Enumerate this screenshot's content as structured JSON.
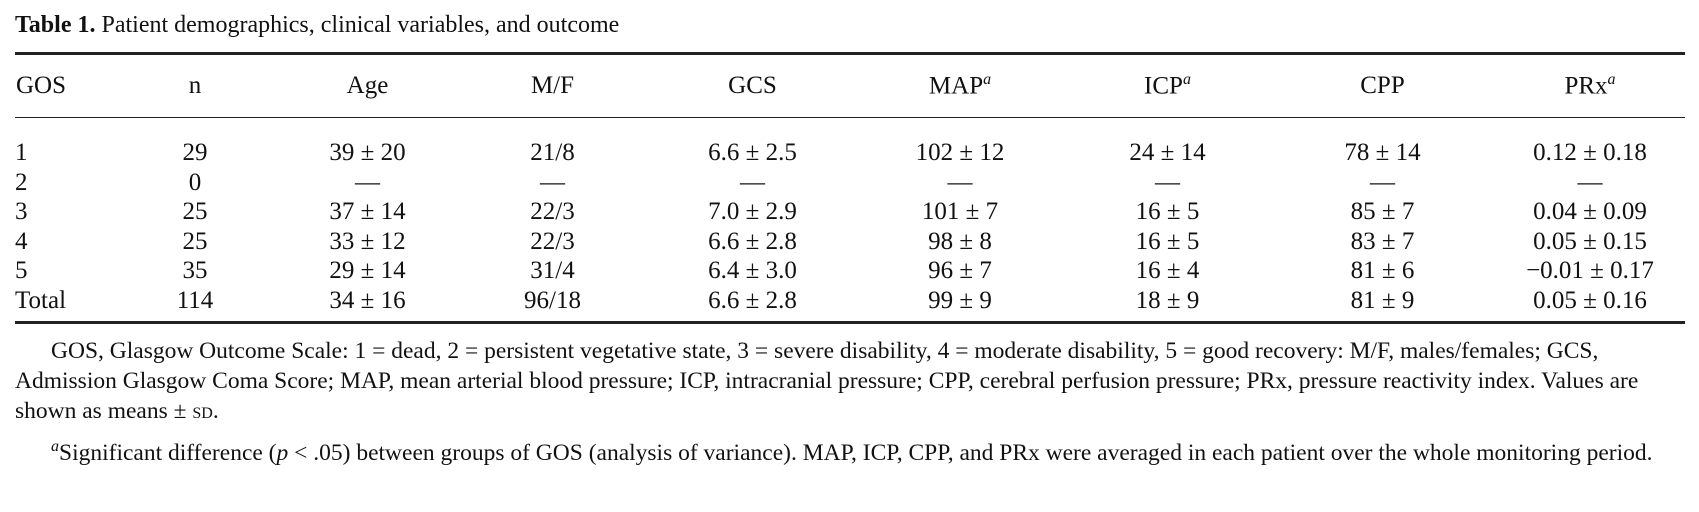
{
  "table": {
    "label": "Table 1.",
    "title": "Patient demographics, clinical variables, and outcome",
    "headers": [
      {
        "text": "GOS"
      },
      {
        "text": "n"
      },
      {
        "text": "Age"
      },
      {
        "text": "M/F"
      },
      {
        "text": "GCS"
      },
      {
        "text": "MAP",
        "note": "a"
      },
      {
        "text": "ICP",
        "note": "a"
      },
      {
        "text": "CPP"
      },
      {
        "text": "PRx",
        "note": "a"
      }
    ],
    "rows": [
      [
        "1",
        "29",
        "39 ± 20",
        "21/8",
        "6.6 ± 2.5",
        "102 ± 12",
        "24 ± 14",
        "78 ± 14",
        "0.12 ± 0.18"
      ],
      [
        "2",
        "0",
        "—",
        "—",
        "—",
        "—",
        "—",
        "—",
        "—"
      ],
      [
        "3",
        "25",
        "37 ± 14",
        "22/3",
        "7.0 ± 2.9",
        "101 ± 7",
        "16 ± 5",
        "85 ± 7",
        "0.04 ± 0.09"
      ],
      [
        "4",
        "25",
        "33 ± 12",
        "22/3",
        "6.6 ± 2.8",
        "98 ± 8",
        "16 ± 5",
        "83 ± 7",
        "0.05 ± 0.15"
      ],
      [
        "5",
        "35",
        "29 ± 14",
        "31/4",
        "6.4 ± 3.0",
        "96 ± 7",
        "16 ± 4",
        "81 ± 6",
        "−0.01 ± 0.17"
      ],
      [
        "Total",
        "114",
        "34 ± 16",
        "96/18",
        "6.6 ± 2.8",
        "99 ± 9",
        "18 ± 9",
        "81 ± 9",
        "0.05 ± 0.16"
      ]
    ]
  },
  "footnotes": [
    [
      {
        "text": "GOS, Glasgow Outcome Scale: 1 = dead, 2 = persistent vegetative state, 3 = severe disability, 4 = moderate disability, 5 = good recovery: M/F, males/females; GCS, Admission Glasgow Coma Score; MAP, mean arterial blood pressure; ICP, intracranial pressure; CPP, cerebral perfusion pressure; PRx, pressure reactivity index. Values are shown as means ± "
      },
      {
        "text": "SD",
        "style": "small-caps"
      },
      {
        "text": "."
      }
    ],
    [
      {
        "text": "a",
        "style": "superscript"
      },
      {
        "text": "Significant difference ("
      },
      {
        "text": "p",
        "style": "italic"
      },
      {
        "text": " < .05) between groups of GOS (analysis of variance). MAP, ICP, CPP, and PRx were averaged in each patient over the whole monitoring period."
      }
    ]
  ]
}
